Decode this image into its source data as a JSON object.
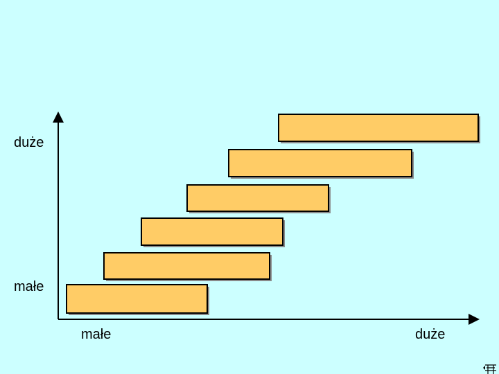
{
  "colors": {
    "background": "#ccffff",
    "bar_fill": "#ffcc66",
    "bar_border": "#000000",
    "bar_shadow": "#8a8a8a",
    "axis": "#000000"
  },
  "y_axis": {
    "low_label": "małe",
    "high_label": "duże"
  },
  "x_axis": {
    "low_label": "małe",
    "high_label": "duże"
  },
  "corner_icon": "navigation-icon"
}
